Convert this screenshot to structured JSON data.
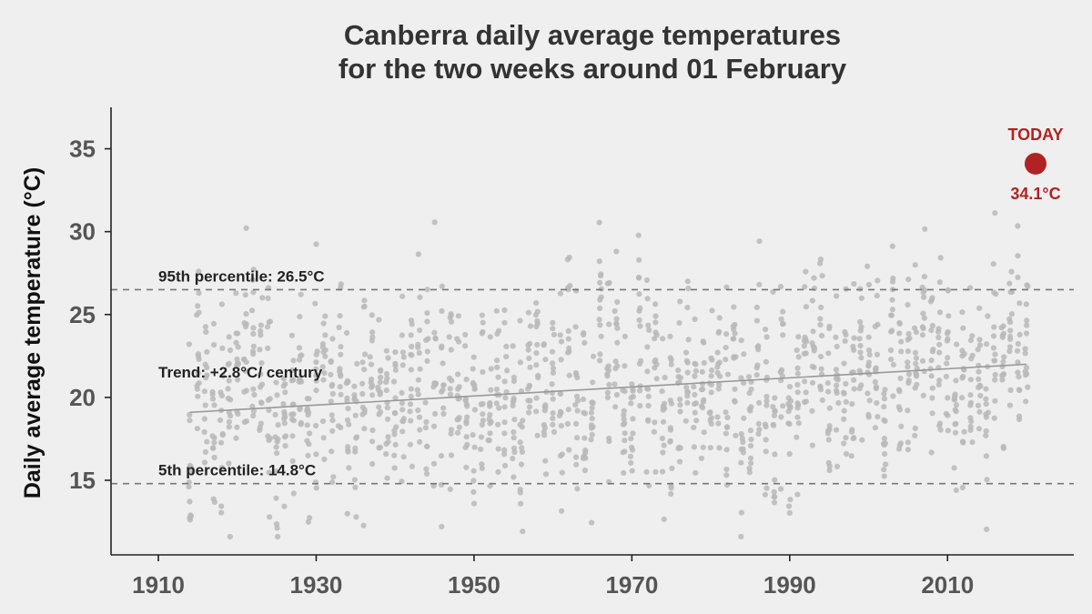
{
  "chart_data": {
    "type": "scatter",
    "title": "Canberra daily average temperatures",
    "subtitle": "for the two weeks around 01 February",
    "xlabel": "",
    "ylabel": "Daily average temperature (°C)",
    "xlim": [
      1904,
      2026
    ],
    "ylim": [
      10.5,
      37.5
    ],
    "x_ticks": [
      1910,
      1930,
      1950,
      1970,
      1990,
      2010
    ],
    "y_ticks": [
      15,
      20,
      25,
      30,
      35
    ],
    "grid": false,
    "percentile_95": {
      "label": "95th percentile:  26.5°C",
      "value": 26.5
    },
    "percentile_5": {
      "label": "5th percentile:  14.8°C",
      "value": 14.8
    },
    "trend": {
      "label": "Trend: +2.8°C/ century",
      "x": [
        1914,
        2020
      ],
      "y": [
        19.1,
        22.0
      ]
    },
    "today": {
      "label": "TODAY",
      "value_label": "34.1°C",
      "x": 2020,
      "y": 34.1
    },
    "series": [
      {
        "x_range": [
          1914,
          2020
        ],
        "samples_per_year": 14,
        "trend_start": 19.1,
        "trend_slope_per_year": 0.028,
        "spread_sd": 3.4
      }
    ],
    "colors": {
      "points": "#b8b8b8",
      "today": "#b22222",
      "trend": "#999999",
      "reference_lines": "#777777"
    }
  }
}
